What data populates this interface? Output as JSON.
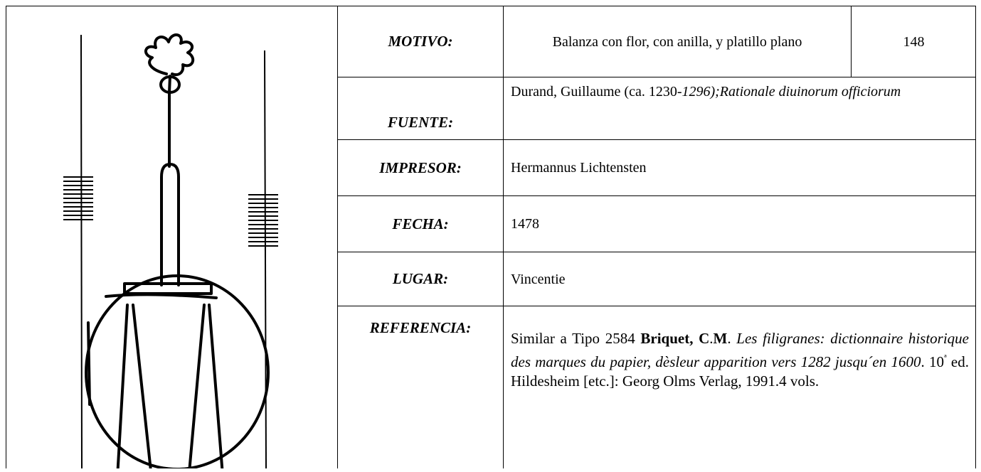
{
  "record": {
    "motivo": {
      "label": "MOTIVO:",
      "value": "Balanza con flor, con anilla, y platillo plano",
      "number": "148"
    },
    "fuente": {
      "label": "FUENTE:",
      "parts": [
        "Durand, Guillaume (ca. 1230-",
        "1296);Rationale diuinorum officiorum"
      ]
    },
    "impresor": {
      "label": "IMPRESOR:",
      "value": "Hermannus Lichtensten"
    },
    "fecha": {
      "label": "FECHA:",
      "value": "1478"
    },
    "lugar": {
      "label": "LUGAR:",
      "value": "Vincentie"
    },
    "referencia": {
      "label": "REFERENCIA:",
      "parts": [
        "Similar a Tipo 2584 ",
        "Briquet, C",
        ".",
        "M",
        ". ",
        "Les filigranes: dictionnaire historique des marques du papier, dèsleur apparition vers 1282 jusqu´en 1600",
        ". 10",
        "ª",
        " ed. Hildesheim [etc.]: Georg Olms Verlag, 1991.4 vols."
      ]
    }
  }
}
